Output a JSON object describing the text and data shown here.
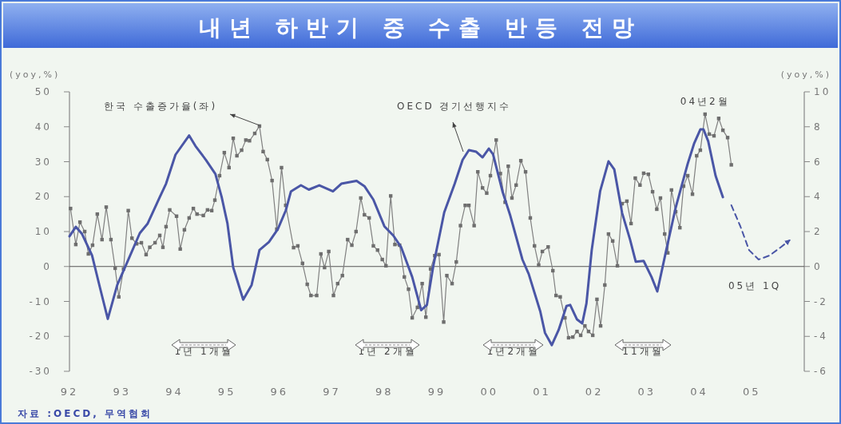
{
  "chart_data": {
    "type": "line",
    "title": "내년 하반기 중 수출 반등 전망",
    "ylabel": "(yoy,%)",
    "y2label": "(yoy,%)",
    "xlim": [
      1992,
      2006
    ],
    "xticks": [
      {
        "value": 1992,
        "label": "92"
      },
      {
        "value": 1993,
        "label": "93"
      },
      {
        "value": 1994,
        "label": "94"
      },
      {
        "value": 1995,
        "label": "95"
      },
      {
        "value": 1996,
        "label": "96"
      },
      {
        "value": 1997,
        "label": "97"
      },
      {
        "value": 1998,
        "label": "98"
      },
      {
        "value": 1999,
        "label": "99"
      },
      {
        "value": 2000,
        "label": "00"
      },
      {
        "value": 2001,
        "label": "01"
      },
      {
        "value": 2002,
        "label": "02"
      },
      {
        "value": 2003,
        "label": "03"
      },
      {
        "value": 2004,
        "label": "04"
      },
      {
        "value": 2005,
        "label": "05"
      }
    ],
    "ylim": [
      -30,
      50
    ],
    "yticks": [
      -30,
      -20,
      -10,
      0,
      10,
      20,
      30,
      40,
      50
    ],
    "y2lim": [
      -6,
      10
    ],
    "y2ticks": [
      -6,
      -4,
      -2,
      0,
      2,
      4,
      6,
      8,
      10
    ],
    "ref_lines": [
      {
        "axis": "y",
        "value": 0,
        "color": "#555555"
      }
    ],
    "series": [
      {
        "name": "한국 수출증가율(좌)",
        "color": "#808080",
        "marker": "square",
        "line_style": "solid",
        "x": [
          1992.02,
          1992.12,
          1992.2,
          1992.29,
          1992.36,
          1992.44,
          1992.53,
          1992.62,
          1992.7,
          1992.79,
          1992.87,
          1992.94,
          1993.03,
          1993.12,
          1993.19,
          1993.28,
          1993.37,
          1993.46,
          1993.53,
          1993.63,
          1993.72,
          1993.78,
          1993.84,
          1993.91,
          1994.04,
          1994.11,
          1994.19,
          1994.28,
          1994.36,
          1994.43,
          1994.55,
          1994.63,
          1994.71,
          1994.77,
          1994.86,
          1994.95,
          1995.04,
          1995.12,
          1995.19,
          1995.28,
          1995.36,
          1995.43,
          1995.53,
          1995.62,
          1995.69,
          1995.77,
          1995.86,
          1995.95,
          1996.04,
          1996.12,
          1996.27,
          1996.35,
          1996.44,
          1996.53,
          1996.6,
          1996.71,
          1996.79,
          1996.86,
          1996.94,
          1997.03,
          1997.11,
          1997.2,
          1997.3,
          1997.38,
          1997.46,
          1997.55,
          1997.62,
          1997.71,
          1997.79,
          1997.87,
          1997.96,
          1998.03,
          1998.12,
          1998.2,
          1998.29,
          1998.38,
          1998.46,
          1998.53,
          1998.63,
          1998.72,
          1998.79,
          1998.88,
          1998.96,
          1999.04,
          1999.13,
          1999.19,
          1999.29,
          1999.37,
          1999.45,
          1999.54,
          1999.61,
          1999.71,
          1999.78,
          1999.87,
          1999.95,
          2000.02,
          2000.13,
          2000.21,
          2000.3,
          2000.36,
          2000.43,
          2000.51,
          2000.6,
          2000.69,
          2000.78,
          2000.86,
          2000.94,
          2001.01,
          2001.12,
          2001.21,
          2001.27,
          2001.35,
          2001.44,
          2001.51,
          2001.59,
          2001.67,
          2001.74,
          2001.82,
          2001.89,
          2001.97,
          2002.05,
          2002.12,
          2002.2,
          2002.27,
          2002.35,
          2002.44,
          2002.53,
          2002.62,
          2002.7,
          2002.78,
          2002.87,
          2002.94,
          2003.03,
          2003.11,
          2003.19,
          2003.26,
          2003.34,
          2003.4,
          2003.47,
          2003.55,
          2003.63,
          2003.7,
          2003.78,
          2003.87,
          2003.95,
          2004.02,
          2004.11,
          2004.19,
          2004.28,
          2004.37,
          2004.45,
          2004.54,
          2004.61
        ],
        "values": [
          16.6,
          6.3,
          12.7,
          10,
          3.6,
          6.1,
          15,
          7.7,
          17,
          7.7,
          -0.5,
          -8.7,
          -0.7,
          16,
          8.1,
          6.5,
          6.8,
          3.4,
          5.5,
          6.8,
          8.9,
          5.5,
          11.4,
          16.2,
          14.4,
          5,
          10.5,
          13.9,
          16.6,
          15,
          14.6,
          16.2,
          16,
          19,
          26,
          32.6,
          28.3,
          36.7,
          31.7,
          33.3,
          36.2,
          36,
          38.1,
          40.2,
          32.9,
          30.6,
          24.6,
          10.7,
          28.3,
          17.5,
          5.4,
          5.9,
          0.9,
          -5.1,
          -8.3,
          -8.3,
          3.6,
          -0.3,
          4.3,
          -8.3,
          -4.9,
          -2.6,
          7.7,
          6.1,
          10,
          19.6,
          14.8,
          13.9,
          5.9,
          4.7,
          2,
          0.2,
          20.2,
          6.3,
          6.1,
          -3,
          -6.5,
          -14.7,
          -11.7,
          -4.9,
          -14.5,
          -0.7,
          3.1,
          3.4,
          -15.9,
          -2.6,
          -4.9,
          1.3,
          11.7,
          17.5,
          17.5,
          11.7,
          27.1,
          22.5,
          21,
          26,
          36.2,
          26.6,
          18.4,
          28.7,
          19.6,
          23.3,
          30.3,
          27.1,
          13.9,
          5.9,
          0.4,
          4.3,
          5.6,
          -1.2,
          -8.3,
          -8.7,
          -14.7,
          -20.4,
          -20.2,
          -18.6,
          -19.7,
          -17,
          -18.6,
          -19.7,
          -9.4,
          -17,
          -5.3,
          9.3,
          7.3,
          0.2,
          18,
          18.7,
          12.3,
          25.3,
          23.3,
          26.7,
          26.4,
          21.4,
          16.4,
          19.6,
          9.3,
          3.9,
          21.9,
          15.7,
          11.1,
          23,
          26,
          20.7,
          31.7,
          33.3,
          43.6,
          37.9,
          37.4,
          42.4,
          39,
          36.9,
          29.1
        ]
      },
      {
        "name": "OECD 경기선행지수",
        "axis": "y2",
        "color": "#4a56a6",
        "marker": "none",
        "line_style": "solid",
        "x": [
          1992,
          1992.12,
          1992.24,
          1992.43,
          1992.58,
          1992.73,
          1992.91,
          1993.11,
          1993.34,
          1993.49,
          1993.72,
          1993.84,
          1994.02,
          1994.28,
          1994.4,
          1994.6,
          1994.78,
          1994.9,
          1995.01,
          1995.12,
          1995.31,
          1995.47,
          1995.62,
          1995.8,
          1995.97,
          1996.12,
          1996.22,
          1996.41,
          1996.56,
          1996.76,
          1997.02,
          1997.18,
          1997.47,
          1997.62,
          1997.79,
          1998,
          1998.17,
          1998.32,
          1998.53,
          1998.7,
          1998.81,
          1998.93,
          1999.14,
          1999.34,
          1999.49,
          1999.61,
          1999.75,
          1999.87,
          1999.99,
          2000.07,
          2000.25,
          2000.4,
          2000.63,
          2000.75,
          2000.97,
          2001.06,
          2001.19,
          2001.32,
          2001.47,
          2001.54,
          2001.67,
          2001.77,
          2001.85,
          2001.95,
          2002.11,
          2002.27,
          2002.38,
          2002.53,
          2002.68,
          2002.79,
          2002.94,
          2003.09,
          2003.2,
          2003.37,
          2003.55,
          2003.78,
          2003.9,
          2004.02,
          2004.08,
          2004.17,
          2004.31,
          2004.45
        ],
        "values": [
          1.73,
          2.27,
          1.86,
          0.63,
          -1.2,
          -3,
          -1.06,
          0.31,
          1.91,
          2.46,
          3.97,
          4.74,
          6.4,
          7.5,
          6.9,
          6.1,
          5.3,
          3.97,
          2.46,
          -0.06,
          -1.9,
          -1.06,
          0.94,
          1.4,
          2.14,
          3.2,
          4.3,
          4.65,
          4.4,
          4.65,
          4.3,
          4.74,
          4.9,
          4.6,
          3.83,
          2.3,
          1.77,
          1.1,
          -0.6,
          -2.5,
          -2.2,
          0,
          3.1,
          4.74,
          6.1,
          6.66,
          6.57,
          6.25,
          6.75,
          6.43,
          4.3,
          2.9,
          0.4,
          -0.43,
          -2.57,
          -3.8,
          -4.5,
          -3.63,
          -2.26,
          -2.2,
          -3.03,
          -3.26,
          -2.11,
          0.93,
          4.3,
          6.02,
          5.56,
          3.06,
          1.55,
          0.27,
          0.32,
          -0.6,
          -1.43,
          0.93,
          3.37,
          5.89,
          7.03,
          7.85,
          7.85,
          7.17,
          5.2,
          3.97
        ]
      },
      {
        "axis": "y2",
        "color": "#4a56a6",
        "marker": "none",
        "line_style": "dashed",
        "x": [
          2004.61,
          2004.78,
          2004.95,
          2005.13,
          2005.34,
          2005.55,
          2005.72
        ],
        "values": [
          3.51,
          2.32,
          0.93,
          0.4,
          0.63,
          1.1,
          1.5
        ]
      }
    ],
    "annotations": [
      {
        "text": "04년2월",
        "x": 2004.11,
        "y": 43.6
      },
      "05년 1Q",
      "1년 1개월",
      "1년 2개월",
      "1년2개월",
      "11개월",
      "자료 :OECD, 무역협회"
    ]
  }
}
